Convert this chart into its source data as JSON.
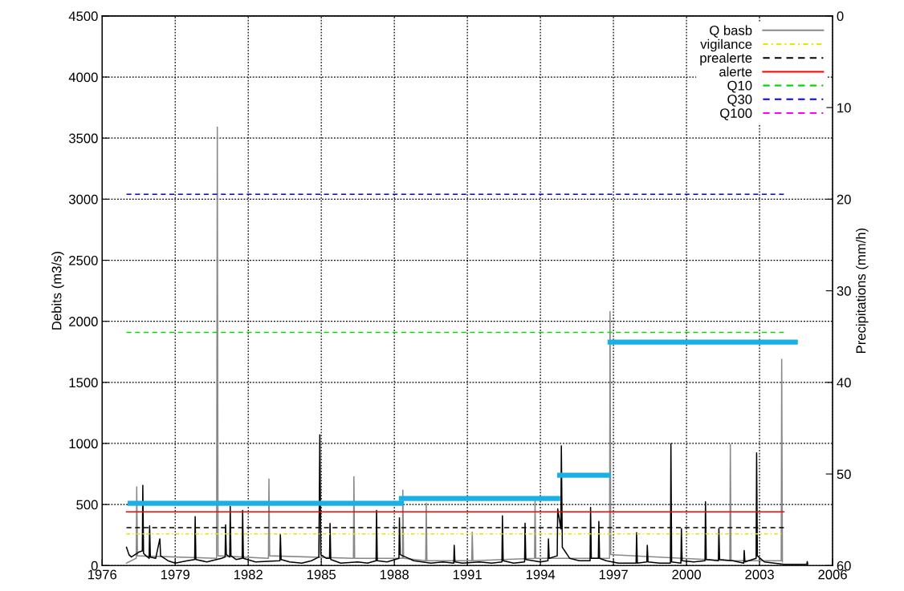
{
  "chart_data": {
    "type": "line",
    "xlabel": null,
    "ylabel": "Debits (m3/s)",
    "y2label": "Precipitations (mm/h)",
    "xlim": [
      1976,
      2006
    ],
    "xticks": [
      1976,
      1979,
      1982,
      1985,
      1988,
      1991,
      1994,
      1997,
      2000,
      2003,
      2006
    ],
    "ylim": [
      0,
      4500
    ],
    "yticks": [
      0,
      500,
      1000,
      1500,
      2000,
      2500,
      3000,
      3500,
      4000,
      4500
    ],
    "y2lim": [
      60,
      0
    ],
    "y2ticks": [
      0,
      10,
      20,
      30,
      40,
      50,
      60
    ],
    "grid": true,
    "legend": "top right",
    "series": [
      {
        "name": "Q basb",
        "color": "#888888",
        "line_style": "solid",
        "x": [
          1977.0,
          1977.4,
          1977.42,
          1977.45,
          1980.7,
          1980.73,
          1980.76,
          1982.83,
          1982.85,
          1982.88,
          1986.32,
          1986.34,
          1986.37,
          1988.33,
          1988.35,
          1988.38,
          1989.29,
          1989.31,
          1989.34,
          1991.18,
          1991.2,
          1991.23,
          1993.76,
          1993.78,
          1993.81,
          1996.84,
          1996.86,
          1996.89,
          2001.78,
          2001.8,
          2001.83,
          2003.89,
          2003.91,
          2003.94
        ],
        "values": [
          20,
          60,
          643,
          80,
          60,
          3590,
          80,
          60,
          710,
          80,
          60,
          727,
          60,
          60,
          617,
          60,
          40,
          510,
          40,
          40,
          274,
          40,
          60,
          533,
          60,
          60,
          2080,
          90,
          40,
          993,
          40,
          40,
          1690,
          30
        ]
      },
      {
        "color": "#000000",
        "line_style": "solid",
        "x": [
          1977.0,
          1977.1,
          1977.2,
          1977.5,
          1977.65,
          1977.67,
          1977.7,
          1977.8,
          1977.93,
          1977.95,
          1977.98,
          1978.2,
          1978.37,
          1978.4,
          1978.7,
          1979.0,
          1979.5,
          1979.8,
          1979.82,
          1979.85,
          1980.3,
          1980.9,
          1981.05,
          1981.07,
          1981.1,
          1981.24,
          1981.26,
          1981.29,
          1981.5,
          1981.75,
          1981.77,
          1981.8,
          1982.3,
          1983.3,
          1983.32,
          1983.35,
          1983.7,
          1984.2,
          1984.6,
          1984.9,
          1984.94,
          1984.98,
          1985.2,
          1985.34,
          1985.36,
          1985.39,
          1985.8,
          1986.5,
          1986.9,
          1987.25,
          1987.27,
          1987.3,
          1987.7,
          1988.19,
          1988.21,
          1988.24,
          1988.8,
          1989.5,
          1990.0,
          1990.44,
          1990.46,
          1990.49,
          1990.8,
          1991.5,
          1992.0,
          1992.42,
          1992.44,
          1992.47,
          1992.9,
          1993.35,
          1993.37,
          1993.4,
          1994.0,
          1994.31,
          1994.33,
          1994.36,
          1994.69,
          1994.71,
          1994.84,
          1994.86,
          1994.9,
          1995.2,
          1995.6,
          1996.04,
          1996.06,
          1996.09,
          1996.38,
          1996.4,
          1996.43,
          1996.7,
          1997.2,
          1997.6,
          1997.93,
          1997.95,
          1997.98,
          1998.37,
          1998.39,
          1998.42,
          1998.9,
          1999.34,
          1999.36,
          1999.39,
          1999.77,
          1999.79,
          1999.82,
          2000.3,
          2000.76,
          2000.78,
          2000.81,
          2001.31,
          2001.33,
          2001.36,
          2001.9,
          2002.35,
          2002.37,
          2002.4,
          2002.86,
          2002.88,
          2002.91,
          2003.2,
          2003.6,
          2004.0,
          2004.94,
          2004.96,
          2004.98
        ],
        "values": [
          150,
          90,
          70,
          110,
          120,
          657,
          100,
          80,
          60,
          325,
          70,
          60,
          219,
          80,
          40,
          20,
          40,
          50,
          400,
          50,
          30,
          60,
          70,
          333,
          90,
          70,
          484,
          80,
          50,
          60,
          451,
          60,
          30,
          40,
          259,
          50,
          30,
          20,
          40,
          70,
          1070,
          90,
          60,
          60,
          345,
          50,
          20,
          30,
          20,
          40,
          451,
          40,
          30,
          60,
          391,
          90,
          40,
          20,
          30,
          20,
          166,
          30,
          20,
          30,
          20,
          30,
          407,
          40,
          20,
          30,
          347,
          50,
          30,
          40,
          219,
          60,
          80,
          464,
          300,
          981,
          150,
          60,
          40,
          40,
          477,
          60,
          60,
          362,
          60,
          40,
          20,
          20,
          20,
          270,
          20,
          30,
          166,
          30,
          20,
          20,
          999,
          30,
          20,
          303,
          40,
          30,
          40,
          522,
          50,
          40,
          303,
          50,
          40,
          20,
          124,
          30,
          60,
          922,
          80,
          30,
          20,
          10,
          10,
          33,
          10
        ]
      },
      {
        "name": "vigilance",
        "color": "#e6e600",
        "line_style": "dashdot",
        "x": [
          1977.0,
          2004.0
        ],
        "values": [
          260,
          260
        ]
      },
      {
        "name": "prealerte",
        "color": "#000000",
        "line_style": "dashed",
        "x": [
          1977.0,
          2004.0
        ],
        "values": [
          310,
          310
        ]
      },
      {
        "name": "alerte",
        "color": "#ff0000",
        "line_style": "solid",
        "x": [
          1977.0,
          2004.0
        ],
        "values": [
          440,
          440
        ]
      },
      {
        "name": "Q10",
        "color": "#00dd00",
        "line_style": "dashed",
        "x": [
          1977.0,
          2004.0
        ],
        "values": [
          1910,
          1910
        ]
      },
      {
        "name": "Q30",
        "color": "#0000ff",
        "line_style": "dashed",
        "x": [
          1977.0,
          2004.0
        ],
        "values": [
          3040,
          3040
        ]
      },
      {
        "name": "Q100",
        "color": "#ff00ff",
        "line_style": "dashed"
      },
      {
        "type": "step",
        "color": "#1ab0e6",
        "line_style": "solid",
        "x": [
          1977.15,
          1988.29
        ],
        "values": [
          510,
          510
        ]
      },
      {
        "type": "step",
        "color": "#1ab0e6",
        "line_style": "solid",
        "x": [
          1988.29,
          1994.71
        ],
        "values": [
          550,
          550
        ]
      },
      {
        "type": "step",
        "color": "#1ab0e6",
        "line_style": "solid",
        "x": [
          1994.79,
          1996.79
        ],
        "values": [
          740,
          740
        ]
      },
      {
        "type": "step",
        "color": "#1ab0e6",
        "line_style": "solid",
        "x": [
          1996.86,
          2004.47
        ],
        "values": [
          1830,
          1830
        ]
      }
    ]
  }
}
